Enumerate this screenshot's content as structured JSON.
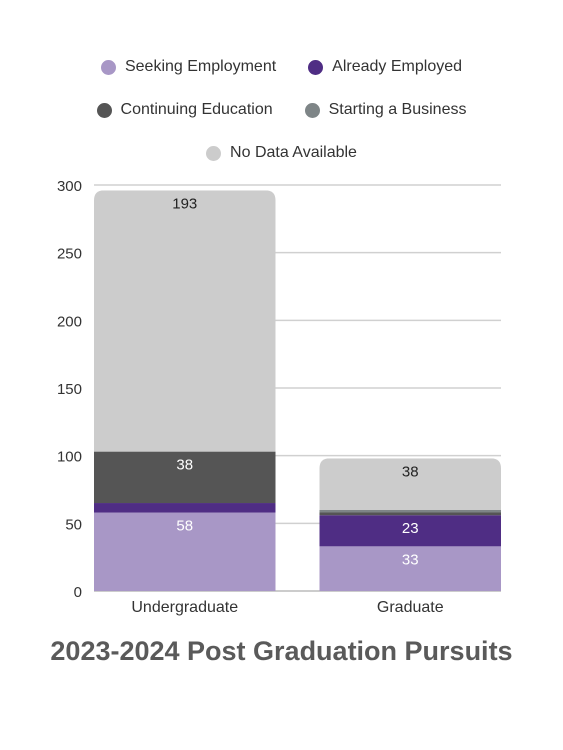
{
  "chart_data": {
    "type": "bar",
    "stacked": true,
    "title": "2023-2024 Post Graduation Pursuits",
    "categories": [
      "Undergraduate",
      "Graduate"
    ],
    "series": [
      {
        "name": "Seeking Employment",
        "color": "#a897c6",
        "values": [
          58,
          33
        ],
        "labels": [
          "58",
          "33"
        ]
      },
      {
        "name": "Already Employed",
        "color": "#4f2d84",
        "values": [
          7,
          23
        ],
        "labels": [
          "",
          "23"
        ]
      },
      {
        "name": "Continuing Education",
        "color": "#555555",
        "values": [
          38,
          2
        ],
        "labels": [
          "38",
          ""
        ]
      },
      {
        "name": "Starting a Business",
        "color": "#7e8587",
        "values": [
          0,
          2
        ],
        "labels": [
          "",
          ""
        ]
      },
      {
        "name": "No Data Available",
        "color": "#cccccc",
        "values": [
          193,
          38
        ],
        "labels": [
          "193",
          "38"
        ]
      }
    ],
    "ylim": [
      0,
      300
    ],
    "yticks": [
      0,
      50,
      100,
      150,
      200,
      250,
      300
    ],
    "grid": true,
    "legend_position": "top"
  }
}
